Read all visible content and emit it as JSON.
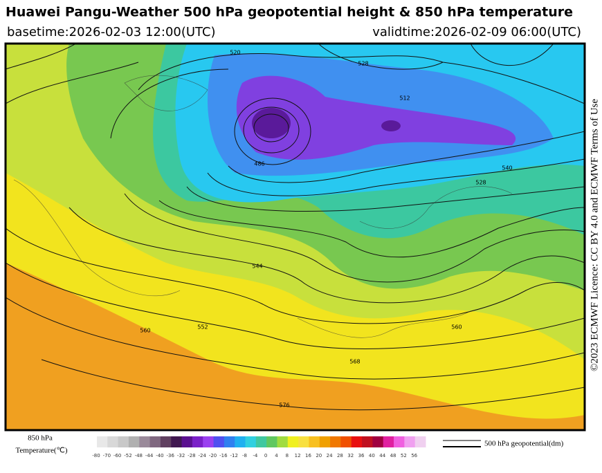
{
  "header": {
    "title": "Huawei Pangu-Weather 500 hPa geopotential height & 850 hPa temperature",
    "basetime": "basetime:2026-02-03 12:00(UTC)",
    "validtime": "validtime:2026-02-09 06:00(UTC)"
  },
  "map": {
    "contour_labels": [
      "520",
      "528",
      "512",
      "486",
      "528",
      "540",
      "544",
      "552",
      "560",
      "560",
      "568",
      "576"
    ]
  },
  "colorbar": {
    "title_line1": "850 hPa",
    "title_line2": "Temperature(℃)",
    "ticks": [
      -80,
      -70,
      -60,
      -52,
      -48,
      -44,
      -40,
      -36,
      -32,
      -28,
      -24,
      -20,
      -16,
      -12,
      -8,
      -4,
      0,
      4,
      8,
      12,
      16,
      20,
      24,
      28,
      32,
      36,
      40,
      44,
      48,
      52,
      56
    ],
    "colors": [
      "#e8e8e8",
      "#d8d8d8",
      "#c8c8c8",
      "#b0b0b0",
      "#9a8a9a",
      "#806880",
      "#604060",
      "#401850",
      "#5a1090",
      "#7a20c8",
      "#9a40f0",
      "#5050f0",
      "#3080f0",
      "#20b0f0",
      "#30d0e0",
      "#40c8a0",
      "#60c860",
      "#a0dc40",
      "#f0f020",
      "#f8e040",
      "#f8c020",
      "#f0a000",
      "#f07800",
      "#f05000",
      "#e81010",
      "#c01020",
      "#a00040",
      "#e020a0",
      "#f060e0",
      "#f0a0f0",
      "#f0d0f0"
    ]
  },
  "legend": {
    "label": "500 hPa geopotential(dm)"
  },
  "licence": "©2023 ECMWF Licence: CC BY 4.0 and ECMWF Terms of Use"
}
